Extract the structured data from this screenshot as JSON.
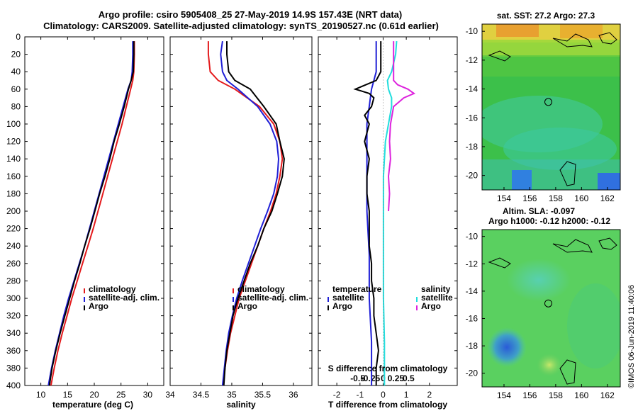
{
  "title_line1": "Argo profile: csiro 5905408_25 27-May-2019 14.9S 157.43E (NRT data)",
  "title_line2": "Climatology: CARS2009. Satellite-adjusted climatology: synTS_20190527.nc (0.61d earlier)",
  "watermark": "©IMOS 06-Jun-2019 11:40:06",
  "colors": {
    "climatology": "#e41a1c",
    "satellite": "#1f1fd6",
    "argo": "#000000",
    "sat_salinity": "#22dddd",
    "argo_salinity": "#dd22dd"
  },
  "chart_data": [
    {
      "id": "temperature",
      "type": "line",
      "xlabel": "temperature (deg C)",
      "ylabel": "",
      "xlim": [
        7,
        33
      ],
      "ylim": [
        0,
        400
      ],
      "x_ticks": [
        "10",
        "15",
        "20",
        "25",
        "30"
      ],
      "y_ticks": [
        "0",
        "20",
        "40",
        "60",
        "80",
        "100",
        "120",
        "140",
        "160",
        "180",
        "200",
        "220",
        "240",
        "260",
        "280",
        "300",
        "320",
        "340",
        "360",
        "380",
        "400"
      ],
      "legend": [
        "climatology",
        "satellite-adj. clim.",
        "Argo"
      ],
      "series": [
        {
          "name": "climatology",
          "depth": [
            5,
            20,
            40,
            50,
            60,
            80,
            100,
            120,
            140,
            160,
            180,
            200,
            220,
            240,
            260,
            280,
            300,
            320,
            340,
            360,
            380,
            400
          ],
          "values": [
            27.5,
            27.5,
            27.4,
            27.2,
            26.8,
            26.0,
            25.2,
            24.3,
            23.4,
            22.5,
            21.6,
            20.7,
            19.8,
            18.8,
            17.8,
            16.8,
            15.8,
            14.9,
            14.0,
            13.2,
            12.5,
            11.9
          ]
        },
        {
          "name": "satellite-adj. clim.",
          "depth": [
            5,
            20,
            40,
            50,
            60,
            80,
            100,
            120,
            140,
            160,
            180,
            200,
            220,
            240,
            260,
            280,
            300,
            320,
            340,
            360,
            380,
            400
          ],
          "values": [
            27.2,
            27.2,
            27.1,
            26.9,
            26.3,
            25.4,
            24.5,
            23.6,
            22.7,
            21.8,
            20.9,
            20.0,
            19.1,
            18.2,
            17.2,
            16.2,
            15.2,
            14.3,
            13.5,
            12.7,
            12.0,
            11.4
          ]
        },
        {
          "name": "Argo",
          "depth": [
            5,
            20,
            40,
            50,
            60,
            80,
            100,
            120,
            140,
            160,
            180,
            200,
            220,
            240,
            260,
            280,
            300,
            320,
            340,
            360,
            380,
            400
          ],
          "values": [
            27.4,
            27.4,
            27.3,
            26.9,
            26.4,
            25.6,
            24.7,
            23.7,
            22.9,
            22.0,
            21.0,
            20.1,
            19.2,
            18.2,
            17.3,
            16.3,
            15.4,
            14.5,
            13.6,
            12.8,
            12.1,
            11.6
          ]
        }
      ]
    },
    {
      "id": "salinity",
      "type": "line",
      "xlabel": "salinity",
      "xlim": [
        34,
        36.3
      ],
      "ylim": [
        0,
        400
      ],
      "x_ticks": [
        "34",
        "34.5",
        "35",
        "35.5",
        "36"
      ],
      "legend": [
        "climatology",
        "satellite-adj. clim.",
        "Argo"
      ],
      "series": [
        {
          "name": "climatology",
          "depth": [
            5,
            20,
            40,
            50,
            60,
            80,
            100,
            120,
            140,
            160,
            180,
            200,
            220,
            240,
            260,
            280,
            300,
            320,
            340,
            360,
            380,
            400
          ],
          "values": [
            34.62,
            34.62,
            34.65,
            34.78,
            35.05,
            35.45,
            35.68,
            35.78,
            35.82,
            35.78,
            35.72,
            35.63,
            35.52,
            35.42,
            35.32,
            35.22,
            35.12,
            35.05,
            34.98,
            34.93,
            34.89,
            34.86
          ]
        },
        {
          "name": "satellite-adj. clim.",
          "depth": [
            5,
            20,
            40,
            50,
            60,
            80,
            100,
            120,
            140,
            160,
            180,
            200,
            220,
            240,
            260,
            280,
            300,
            320,
            340,
            360,
            380,
            400
          ],
          "values": [
            34.85,
            34.82,
            34.85,
            34.92,
            35.1,
            35.42,
            35.62,
            35.73,
            35.76,
            35.74,
            35.68,
            35.58,
            35.47,
            35.37,
            35.27,
            35.17,
            35.08,
            35.01,
            34.95,
            34.91,
            34.88,
            34.85
          ]
        },
        {
          "name": "Argo",
          "depth": [
            5,
            20,
            40,
            50,
            60,
            80,
            100,
            120,
            140,
            160,
            180,
            200,
            220,
            240,
            260,
            280,
            300,
            320,
            340,
            360,
            380,
            400
          ],
          "values": [
            34.92,
            34.92,
            34.95,
            35.05,
            35.3,
            35.52,
            35.72,
            35.78,
            35.85,
            35.82,
            35.74,
            35.65,
            35.52,
            35.42,
            35.3,
            35.2,
            35.1,
            35.02,
            34.97,
            34.92,
            34.89,
            34.87
          ]
        }
      ]
    },
    {
      "id": "difference",
      "type": "line",
      "xlabel": "T difference from climatology",
      "xlabel_top": "S difference from climatology",
      "xlim": [
        -2.8,
        3.2
      ],
      "ylim": [
        0,
        400
      ],
      "x_ticks": [
        "-2",
        "-1",
        "0",
        "1",
        "2"
      ],
      "x_ticks_top": [
        "-0.5",
        "-0.25",
        "0",
        "0.25",
        "0.5"
      ],
      "legend_left_title": "temperature",
      "legend_right_title": "salinity",
      "legend_left": [
        "satellite",
        "Argo"
      ],
      "legend_right": [
        "satellite",
        "Argo"
      ],
      "series": [
        {
          "name": "T satellite",
          "depth": [
            5,
            40,
            60,
            100,
            150,
            200,
            250,
            300,
            350,
            400
          ],
          "values": [
            -0.3,
            -0.3,
            -0.5,
            -0.7,
            -0.7,
            -0.7,
            -0.6,
            -0.6,
            -0.5,
            -0.5
          ]
        },
        {
          "name": "T Argo",
          "depth": [
            5,
            20,
            40,
            50,
            60,
            65,
            70,
            80,
            90,
            100,
            120,
            140,
            160,
            180,
            200,
            220,
            240,
            260,
            280,
            300,
            320,
            340,
            360,
            380,
            400
          ],
          "values": [
            -0.1,
            -0.1,
            -0.1,
            -0.3,
            -1.2,
            -0.6,
            -0.4,
            -0.5,
            -0.8,
            -0.6,
            -0.8,
            -0.6,
            -0.7,
            -0.7,
            -0.6,
            -0.6,
            -0.6,
            -0.5,
            -0.5,
            -0.4,
            -0.4,
            -0.3,
            -0.2,
            -0.3,
            -0.3
          ]
        },
        {
          "name": "S satellite",
          "depth": [
            5,
            20,
            40,
            50,
            60,
            70,
            80,
            100,
            120,
            140,
            160,
            200,
            250,
            300,
            350,
            400
          ],
          "values": [
            0.11,
            0.1,
            0.06,
            0.02,
            0.03,
            0.06,
            0.06,
            0.03,
            0.0,
            -0.01,
            -0.02,
            -0.02,
            -0.02,
            -0.02,
            -0.01,
            -0.01
          ]
        },
        {
          "name": "S Argo",
          "depth": [
            5,
            20,
            40,
            50,
            55,
            60,
            65,
            70,
            80,
            100,
            120,
            140,
            160,
            180,
            200
          ],
          "values": [
            0.08,
            0.08,
            0.08,
            0.08,
            0.12,
            0.22,
            0.28,
            0.18,
            0.08,
            0.05,
            0.04,
            0.05,
            0.03,
            0.04,
            0.03
          ]
        }
      ]
    },
    {
      "id": "sst_map",
      "type": "heatmap",
      "title": "sat. SST: 27.2 Argo: 27.3",
      "x_ticks": [
        "154",
        "156",
        "158",
        "160",
        "162"
      ],
      "y_ticks": [
        "-10",
        "-12",
        "-14",
        "-16",
        "-18",
        "-20"
      ],
      "xlim": [
        152.3,
        163
      ],
      "ylim": [
        -21,
        -9.5
      ],
      "argo_position": {
        "lon": 157.43,
        "lat": -14.9
      }
    },
    {
      "id": "sla_map",
      "type": "heatmap",
      "title": "Altim. SLA: -0.097",
      "subtitle": "Argo h1000: -0.12 h2000: -0.12",
      "x_ticks": [
        "154",
        "156",
        "158",
        "160",
        "162"
      ],
      "y_ticks": [
        "-10",
        "-12",
        "-14",
        "-16",
        "-18",
        "-20"
      ],
      "xlim": [
        152.3,
        163
      ],
      "ylim": [
        -21,
        -9.5
      ],
      "argo_position": {
        "lon": 157.43,
        "lat": -14.9
      }
    }
  ]
}
